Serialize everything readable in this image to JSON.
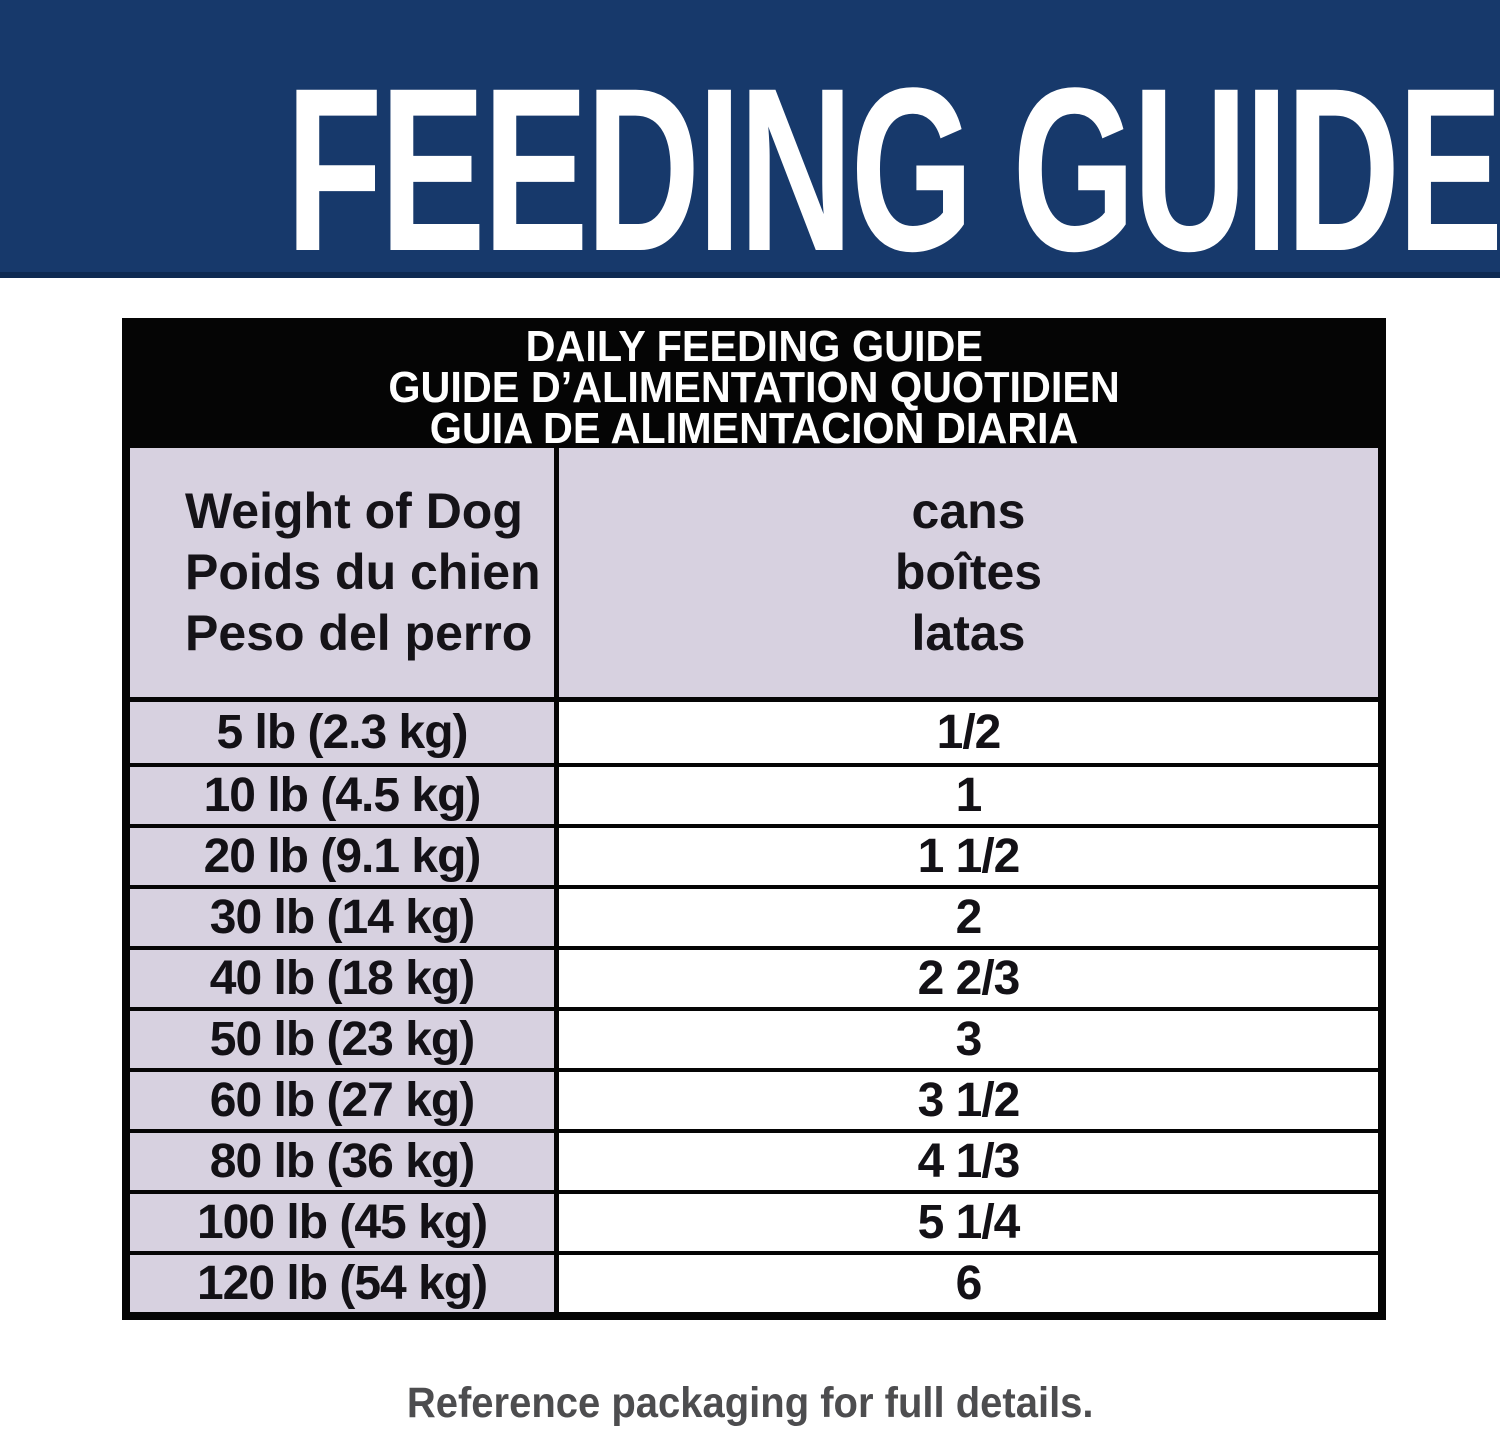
{
  "banner": {
    "title": "FEEDING GUIDE",
    "background_color": "#17396b",
    "border_color": "#0e2a52",
    "text_color": "#ffffff"
  },
  "table": {
    "title_lines": [
      "DAILY FEEDING GUIDE",
      "GUIDE D’ALIMENTATION QUOTIDIEN",
      "GUIA DE ALIMENTACION DIARIA"
    ],
    "columns": {
      "weight_header_lines": [
        "Weight of Dog",
        "Poids du chien",
        "Peso del perro"
      ],
      "cans_header_lines": [
        "cans",
        "boîtes",
        "latas"
      ]
    },
    "rows": [
      {
        "weight": "5 lb (2.3 kg)",
        "cans": "1/2"
      },
      {
        "weight": "10 lb (4.5 kg)",
        "cans": "1"
      },
      {
        "weight": "20 lb (9.1 kg)",
        "cans": "1 1/2"
      },
      {
        "weight": "30 lb (14 kg)",
        "cans": "2"
      },
      {
        "weight": "40 lb (18 kg)",
        "cans": "2 2/3"
      },
      {
        "weight": "50 lb (23 kg)",
        "cans": "3"
      },
      {
        "weight": "60 lb (27 kg)",
        "cans": "3 1/2"
      },
      {
        "weight": "80 lb (36 kg)",
        "cans": "4 1/3"
      },
      {
        "weight": "100 lb (45 kg)",
        "cans": "5 1/4"
      },
      {
        "weight": "120 lb (54 kg)",
        "cans": "6"
      }
    ],
    "header_background": "#050505",
    "header_text_color": "#ffffff",
    "lavender_cell_color": "#d7d1e0",
    "border_color": "#050505"
  },
  "footer": {
    "note": "Reference packaging for full details.",
    "text_color": "#4d4d4f"
  }
}
